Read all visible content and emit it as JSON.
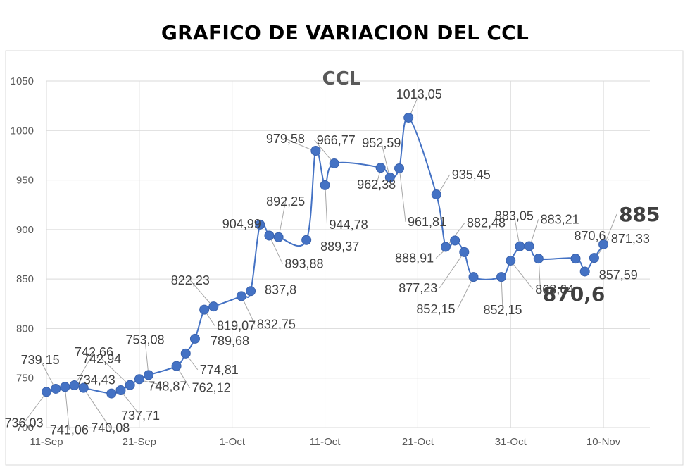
{
  "page_title": "GRAFICO DE VARIACION DEL CCL",
  "chart_data": {
    "type": "line",
    "title": "CCL",
    "xlabel": "",
    "ylabel": "",
    "ylim": [
      700,
      1050
    ],
    "yticks": [
      700,
      750,
      800,
      850,
      900,
      950,
      1000,
      1050
    ],
    "xticks": [
      {
        "date": "2023-09-11",
        "label": "11-Sep"
      },
      {
        "date": "2023-09-21",
        "label": "21-Sep"
      },
      {
        "date": "2023-10-01",
        "label": "1-Oct"
      },
      {
        "date": "2023-10-11",
        "label": "11-Oct"
      },
      {
        "date": "2023-10-21",
        "label": "21-Oct"
      },
      {
        "date": "2023-10-31",
        "label": "31-Oct"
      },
      {
        "date": "2023-11-10",
        "label": "10-Nov"
      }
    ],
    "xlim": [
      "2023-09-11",
      "2023-11-15"
    ],
    "grid": true,
    "legend": "none",
    "line_color": "#4472C4",
    "series": [
      {
        "points": [
          {
            "x": "2023-09-11",
            "y": 736.03,
            "label": "736,03"
          },
          {
            "x": "2023-09-12",
            "y": 739.15,
            "label": "739,15"
          },
          {
            "x": "2023-09-13",
            "y": 741.06,
            "label": "741,06"
          },
          {
            "x": "2023-09-14",
            "y": 742.66,
            "label": "742,66"
          },
          {
            "x": "2023-09-15",
            "y": 740.08,
            "label": "740,08"
          },
          {
            "x": "2023-09-18",
            "y": 734.43,
            "label": "734,43"
          },
          {
            "x": "2023-09-19",
            "y": 737.71,
            "label": "737,71"
          },
          {
            "x": "2023-09-20",
            "y": 742.94,
            "label": "742,94"
          },
          {
            "x": "2023-09-21",
            "y": 748.87,
            "label": "748,87"
          },
          {
            "x": "2023-09-22",
            "y": 753.08,
            "label": "753,08"
          },
          {
            "x": "2023-09-25",
            "y": 762.12,
            "label": "762,12"
          },
          {
            "x": "2023-09-26",
            "y": 774.81,
            "label": "774,81"
          },
          {
            "x": "2023-09-27",
            "y": 789.68,
            "label": "789,68"
          },
          {
            "x": "2023-09-28",
            "y": 819.07,
            "label": "819,07"
          },
          {
            "x": "2023-09-29",
            "y": 822.23,
            "label": "822,23"
          },
          {
            "x": "2023-10-02",
            "y": 832.75,
            "label": "832,75"
          },
          {
            "x": "2023-10-03",
            "y": 837.8,
            "label": "837,8"
          },
          {
            "x": "2023-10-04",
            "y": 904.99,
            "label": "904,99"
          },
          {
            "x": "2023-10-05",
            "y": 893.88,
            "label": "893,88"
          },
          {
            "x": "2023-10-06",
            "y": 892.25,
            "label": "892,25"
          },
          {
            "x": "2023-10-09",
            "y": 889.37,
            "label": "889,37"
          },
          {
            "x": "2023-10-10",
            "y": 979.58,
            "label": "979,58"
          },
          {
            "x": "2023-10-11",
            "y": 944.78,
            "label": "944,78"
          },
          {
            "x": "2023-10-12",
            "y": 966.77,
            "label": "966,77"
          },
          {
            "x": "2023-10-17",
            "y": 962.38,
            "label": "962,38"
          },
          {
            "x": "2023-10-18",
            "y": 952.59,
            "label": "952,59"
          },
          {
            "x": "2023-10-19",
            "y": 961.81,
            "label": "961,81"
          },
          {
            "x": "2023-10-20",
            "y": 1013.05,
            "label": "1013,05"
          },
          {
            "x": "2023-10-23",
            "y": 935.45,
            "label": "935,45"
          },
          {
            "x": "2023-10-24",
            "y": 882.48,
            "label": "882,48"
          },
          {
            "x": "2023-10-25",
            "y": 888.91,
            "label": "888,91"
          },
          {
            "x": "2023-10-26",
            "y": 877.23,
            "label": "877,23"
          },
          {
            "x": "2023-10-27",
            "y": 852.15,
            "label": "852,15"
          },
          {
            "x": "2023-10-30",
            "y": 852.15,
            "label": "852,15"
          },
          {
            "x": "2023-10-31",
            "y": 868.64,
            "label": "868,64"
          },
          {
            "x": "2023-11-01",
            "y": 883.05,
            "label": "883,05"
          },
          {
            "x": "2023-11-02",
            "y": 883.21,
            "label": "883,21"
          },
          {
            "x": "2023-11-03",
            "y": 870.6,
            "label": "870,6"
          },
          {
            "x": "2023-11-07",
            "y": 870.6,
            "label": "870,6"
          },
          {
            "x": "2023-11-08",
            "y": 857.59,
            "label": "857,59"
          },
          {
            "x": "2023-11-09",
            "y": 871.33,
            "label": "871,33"
          },
          {
            "x": "2023-11-10",
            "y": 885,
            "label": "885"
          }
        ]
      }
    ]
  }
}
